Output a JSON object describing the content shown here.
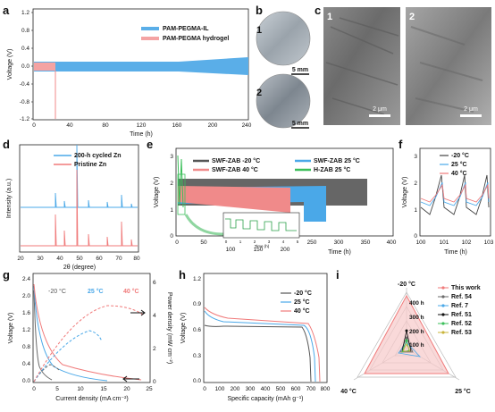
{
  "panels": {
    "a": {
      "label": "a",
      "ylabel": "Voltage (V)",
      "xlabel": "Time (h)",
      "yticks": [
        "1.2",
        "0.8",
        "0.4",
        "0.0",
        "-0.4",
        "-0.8",
        "-1.2"
      ],
      "xticks": [
        "0",
        "40",
        "80",
        "120",
        "160",
        "200",
        "240"
      ],
      "legend": [
        "PAM-PEGMA-IL",
        "PAM-PEGMA hydrogel"
      ],
      "colors": {
        "il": "#5aaee8",
        "hydrogel": "#f08a8a"
      }
    },
    "b": {
      "label": "b",
      "n1": "1",
      "n2": "2",
      "scale1": "5 mm",
      "scale2": "5 mm"
    },
    "c": {
      "label": "c",
      "n1": "1",
      "n2": "2",
      "scale1": "2 μm",
      "scale2": "2 μm"
    },
    "d": {
      "label": "d",
      "ylabel": "Intensity (a.u.)",
      "xlabel": "2θ (degree)",
      "xticks": [
        "20",
        "30",
        "40",
        "50",
        "60",
        "70",
        "80"
      ],
      "legend": [
        "200-h cycled Zn",
        "Pristine Zn"
      ]
    },
    "e": {
      "label": "e",
      "ylabel": "Voltage (V)",
      "xlabel": "Time (h)",
      "yticks": [
        "3",
        "2",
        "1",
        "0"
      ],
      "xticks": [
        "0",
        "50",
        "100",
        "150",
        "200",
        "250",
        "300",
        "350",
        "400"
      ],
      "legend": [
        "SWF-ZAB -20 °C",
        "SWF-ZAB 25 °C",
        "SWF-ZAB 40 °C",
        "H-ZAB 25 °C"
      ],
      "inset_xticks": [
        "0",
        "1",
        "2",
        "3",
        "4",
        "5"
      ],
      "inset_xlabel": "Time (h)"
    },
    "f": {
      "label": "f",
      "ylabel": "Voltage (V)",
      "xlabel": "Time (h)",
      "yticks": [
        "3",
        "2",
        "1",
        "0"
      ],
      "xticks": [
        "100",
        "101",
        "102",
        "103"
      ],
      "legend": [
        "-20 °C",
        "25 °C",
        "40 °C"
      ]
    },
    "g": {
      "label": "g",
      "ylabel": "Voltage (V)",
      "ylabel2": "Power density (mW cm⁻²)",
      "xlabel": "Current density (mA cm⁻²)",
      "yticks": [
        "2.4",
        "2.0",
        "1.6",
        "1.2",
        "0.8",
        "0.4",
        "0.0"
      ],
      "y2ticks": [
        "6",
        "4",
        "2",
        "0"
      ],
      "xticks": [
        "0",
        "5",
        "10",
        "15",
        "20",
        "25"
      ],
      "temps": [
        "-20 °C",
        "25 °C",
        "40 °C"
      ]
    },
    "h": {
      "label": "h",
      "ylabel": "Voltage (V)",
      "xlabel": "Specific capacity (mAh g⁻¹)",
      "yticks": [
        "1.2",
        "0.9",
        "0.6",
        "0.3",
        "0.0"
      ],
      "xticks": [
        "0",
        "100",
        "200",
        "300",
        "400",
        "500",
        "600",
        "700",
        "800"
      ],
      "legend": [
        "-20 °C",
        "25 °C",
        "40 °C"
      ]
    },
    "i": {
      "label": "i",
      "axes": [
        "-20 °C",
        "25 °C",
        "40 °C"
      ],
      "rings": [
        "100 h",
        "200 h",
        "300 h",
        "400 h"
      ],
      "legend": [
        "This work",
        "Ref. 54",
        "Ref. 7",
        "Ref. 51",
        "Ref. 52",
        "Ref. 53"
      ]
    }
  },
  "colors": {
    "blue": "#4aa8e8",
    "red": "#f07a7a",
    "gray": "#6a6a6a"
  }
}
